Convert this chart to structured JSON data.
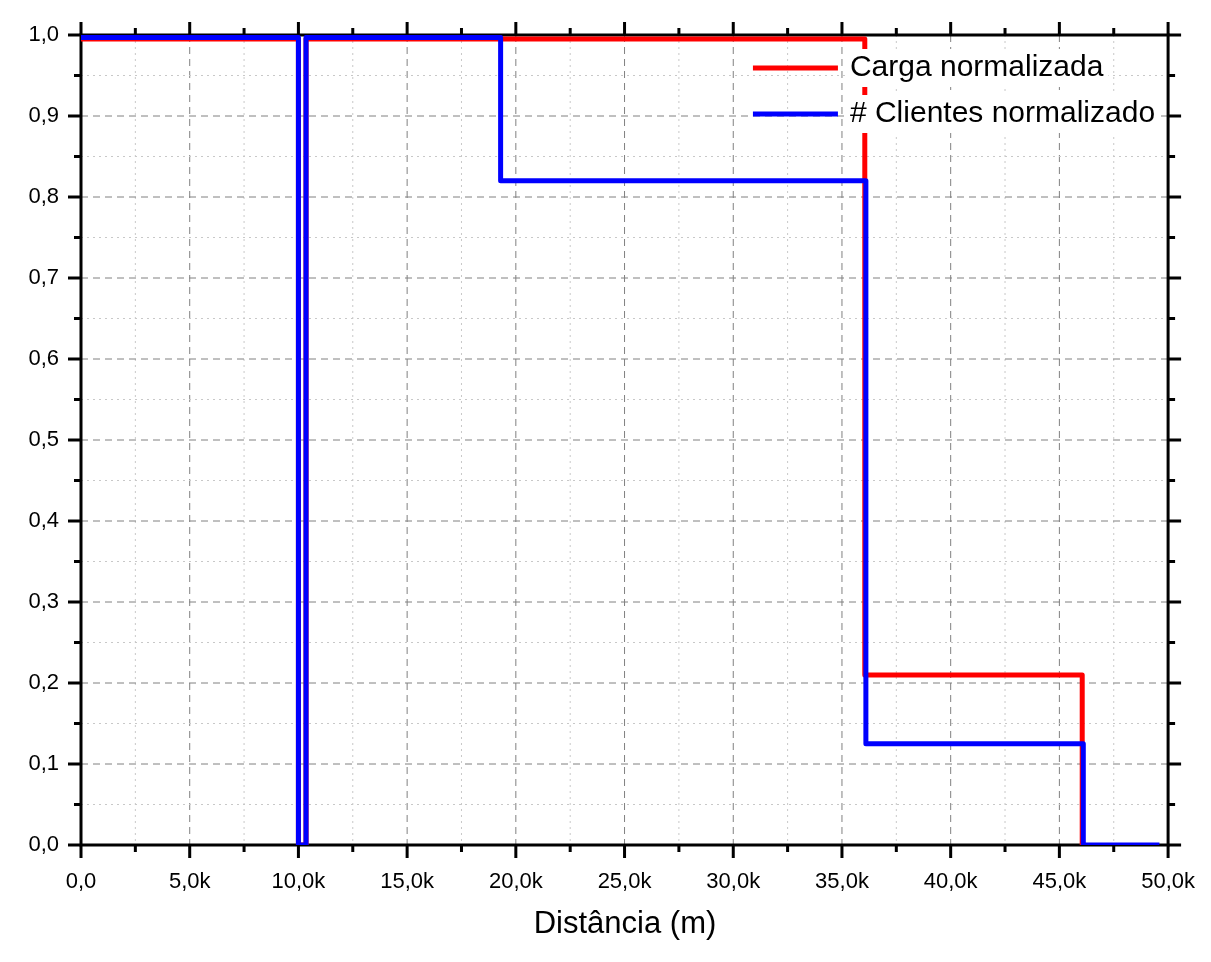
{
  "chart_data": {
    "type": "step",
    "xlabel": "Distância (m)",
    "series": [
      {
        "name": "Carga normalizada",
        "color": "#ff0000",
        "x": [
          0,
          10000,
          10350,
          36050,
          46050
        ],
        "values": [
          0.995,
          0,
          0.995,
          0.21,
          0
        ]
      },
      {
        "name": "# Clientes normalizado",
        "color": "#0000ff",
        "x": [
          0,
          10000,
          10350,
          19300,
          36100,
          46100,
          49600
        ],
        "values": [
          0.997,
          0,
          0.997,
          0.82,
          0.125,
          0,
          0
        ]
      }
    ],
    "xlim": [
      0,
      50000
    ],
    "xticks": [
      {
        "value": 0,
        "label": "0,0"
      },
      {
        "value": 2500,
        "label": null
      },
      {
        "value": 5000,
        "label": "5,0k"
      },
      {
        "value": 7500,
        "label": null
      },
      {
        "value": 10000,
        "label": "10,0k"
      },
      {
        "value": 12500,
        "label": null
      },
      {
        "value": 15000,
        "label": "15,0k"
      },
      {
        "value": 17500,
        "label": null
      },
      {
        "value": 20000,
        "label": "20,0k"
      },
      {
        "value": 22500,
        "label": null
      },
      {
        "value": 25000,
        "label": "25,0k"
      },
      {
        "value": 27500,
        "label": null
      },
      {
        "value": 30000,
        "label": "30,0k"
      },
      {
        "value": 32500,
        "label": null
      },
      {
        "value": 35000,
        "label": "35,0k"
      },
      {
        "value": 37500,
        "label": null
      },
      {
        "value": 40000,
        "label": "40,0k"
      },
      {
        "value": 42500,
        "label": null
      },
      {
        "value": 45000,
        "label": "45,0k"
      },
      {
        "value": 47500,
        "label": null
      },
      {
        "value": 50000,
        "label": "50,0k"
      }
    ],
    "ylim": [
      0,
      1
    ],
    "yticks": [
      {
        "value": 0,
        "label": "0,0"
      },
      {
        "value": 0.05,
        "label": null
      },
      {
        "value": 0.1,
        "label": "0,1"
      },
      {
        "value": 0.15,
        "label": null
      },
      {
        "value": 0.2,
        "label": "0,2"
      },
      {
        "value": 0.25,
        "label": null
      },
      {
        "value": 0.3,
        "label": "0,3"
      },
      {
        "value": 0.35,
        "label": null
      },
      {
        "value": 0.4,
        "label": "0,4"
      },
      {
        "value": 0.45,
        "label": null
      },
      {
        "value": 0.5,
        "label": "0,5"
      },
      {
        "value": 0.55,
        "label": null
      },
      {
        "value": 0.6,
        "label": "0,6"
      },
      {
        "value": 0.65,
        "label": null
      },
      {
        "value": 0.7,
        "label": "0,7"
      },
      {
        "value": 0.75,
        "label": null
      },
      {
        "value": 0.8,
        "label": "0,8"
      },
      {
        "value": 0.85,
        "label": null
      },
      {
        "value": 0.9,
        "label": "0,9"
      },
      {
        "value": 0.95,
        "label": null
      },
      {
        "value": 1,
        "label": "1,0"
      }
    ],
    "grid": true,
    "legend": "top right",
    "line_style": "solid",
    "marker": "none"
  }
}
